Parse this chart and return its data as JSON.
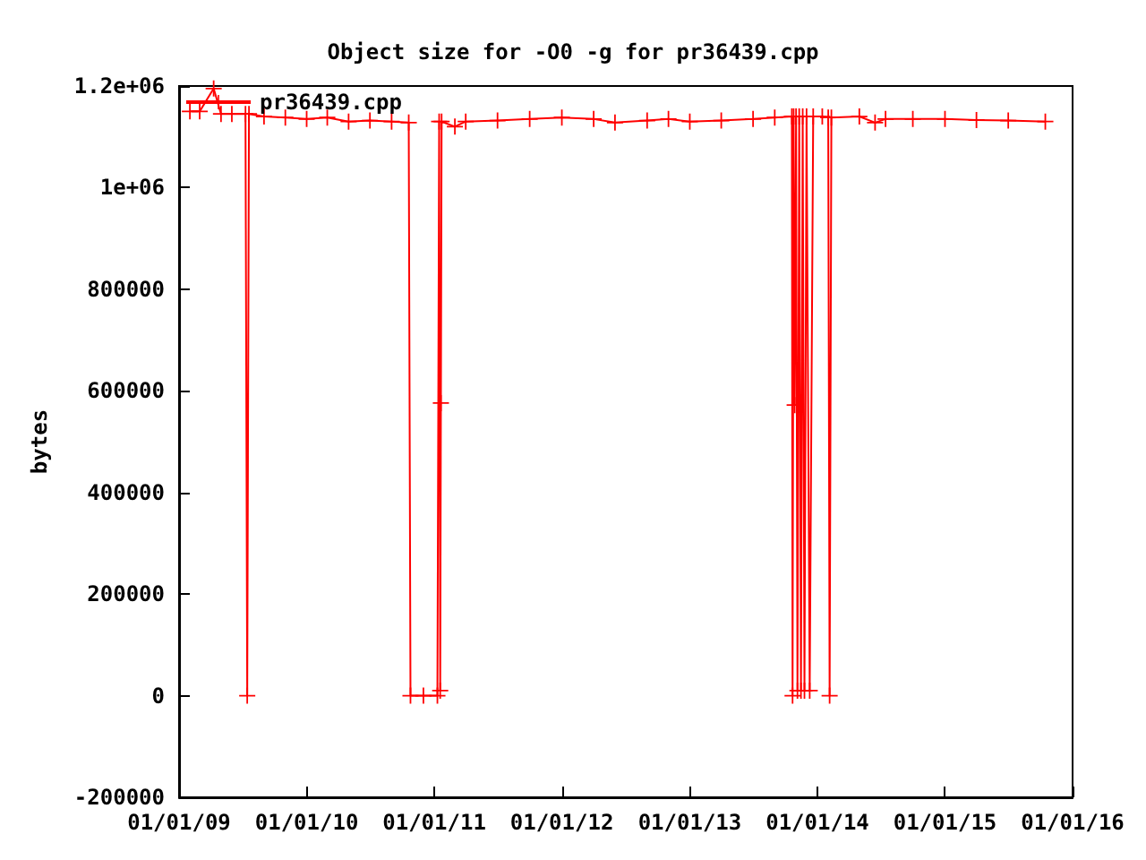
{
  "chart_data": {
    "type": "line",
    "title": "Object size for -O0 -g for pr36439.cpp",
    "ylabel": "bytes",
    "x": [
      "2009-02-01",
      "2009-03-01",
      "2009-04-10",
      "2009-05-01",
      "2009-06-01",
      "2009-07-10",
      "2009-07-15",
      "2009-07-20",
      "2009-09-01",
      "2009-11-01",
      "2010-01-01",
      "2010-03-01",
      "2010-05-01",
      "2010-07-01",
      "2010-09-01",
      "2010-10-20",
      "2010-10-25",
      "2010-12-01",
      "2011-01-10",
      "2011-01-15",
      "2011-01-18",
      "2011-01-20",
      "2011-01-22",
      "2011-03-01",
      "2011-04-01",
      "2011-07-01",
      "2011-10-01",
      "2012-01-01",
      "2012-04-01",
      "2012-06-01",
      "2012-09-01",
      "2012-11-01",
      "2013-01-01",
      "2013-04-01",
      "2013-07-01",
      "2013-09-01",
      "2013-10-20",
      "2013-10-22",
      "2013-10-25",
      "2013-10-28",
      "2013-11-01",
      "2013-11-05",
      "2013-11-10",
      "2013-11-15",
      "2013-11-20",
      "2013-11-25",
      "2013-12-01",
      "2013-12-10",
      "2013-12-20",
      "2014-01-15",
      "2014-02-01",
      "2014-02-05",
      "2014-02-10",
      "2014-05-01",
      "2014-06-15",
      "2014-07-15",
      "2014-10-01",
      "2015-01-01",
      "2015-04-01",
      "2015-07-01",
      "2015-10-15"
    ],
    "series": [
      {
        "name": "pr36439.cpp",
        "color": "#ff0000",
        "values": [
          1150000,
          1150000,
          1195000,
          1145000,
          1145000,
          1145000,
          0,
          1145000,
          1140000,
          1138000,
          1135000,
          1138000,
          1130000,
          1132000,
          1130000,
          1128000,
          0,
          0,
          0,
          1130000,
          10000,
          576000,
          1130000,
          1120000,
          1130000,
          1132000,
          1135000,
          1138000,
          1135000,
          1128000,
          1132000,
          1135000,
          1130000,
          1132000,
          1135000,
          1138000,
          1140000,
          0,
          1140000,
          572000,
          1140000,
          10000,
          1140000,
          10000,
          1140000,
          10000,
          1140000,
          10000,
          1140000,
          1140000,
          1138000,
          0,
          1138000,
          1140000,
          1128000,
          1135000,
          1135000,
          1135000,
          1133000,
          1132000,
          1130000
        ]
      }
    ],
    "xlim": [
      "2009-01-01",
      "2016-01-01"
    ],
    "xticks": [
      {
        "value": "2009-01-01",
        "label": "01/01/09"
      },
      {
        "value": "2010-01-01",
        "label": "01/01/10"
      },
      {
        "value": "2011-01-01",
        "label": "01/01/11"
      },
      {
        "value": "2012-01-01",
        "label": "01/01/12"
      },
      {
        "value": "2013-01-01",
        "label": "01/01/13"
      },
      {
        "value": "2014-01-01",
        "label": "01/01/14"
      },
      {
        "value": "2015-01-01",
        "label": "01/01/15"
      },
      {
        "value": "2016-01-01",
        "label": "01/01/16"
      }
    ],
    "ylim": [
      -200000,
      1200000
    ],
    "yticks": [
      -200000,
      0,
      200000,
      400000,
      600000,
      800000,
      {
        "value": 1000000,
        "label": "1e+06"
      },
      {
        "value": 1200000,
        "label": "1.2e+06"
      }
    ],
    "legend": "top left",
    "marker": "cross",
    "line_style": "solid",
    "grid": false
  }
}
